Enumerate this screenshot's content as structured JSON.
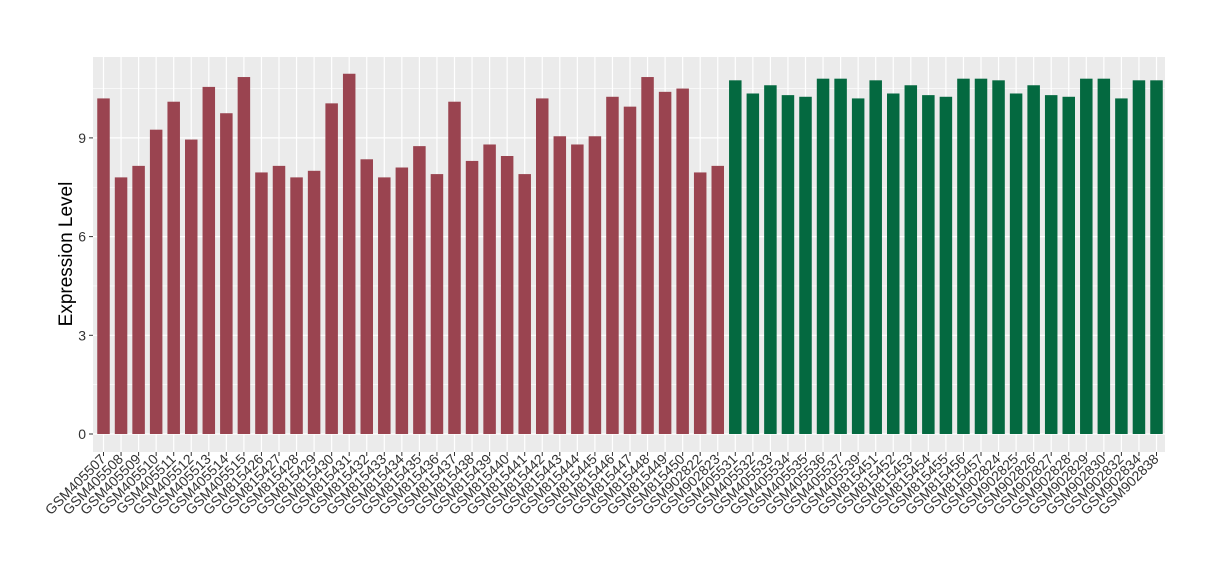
{
  "chart_data": {
    "type": "bar",
    "ylabel": "Expression Level",
    "ylim": [
      0,
      11.6
    ],
    "yticks": [
      0,
      3,
      6,
      9
    ],
    "grid": true,
    "colors": {
      "group_a": "#9a4450",
      "group_b": "#046940",
      "panel": "#ebebeb",
      "gridline": "#ffffff"
    },
    "categories": [
      "GSM405507",
      "GSM405508",
      "GSM405509",
      "GSM405510",
      "GSM405511",
      "GSM405512",
      "GSM405513",
      "GSM405514",
      "GSM405515",
      "GSM815426",
      "GSM815427",
      "GSM815428",
      "GSM815429",
      "GSM815430",
      "GSM815431",
      "GSM815432",
      "GSM815433",
      "GSM815434",
      "GSM815435",
      "GSM815436",
      "GSM815437",
      "GSM815438",
      "GSM815439",
      "GSM815440",
      "GSM815441",
      "GSM815442",
      "GSM815443",
      "GSM815444",
      "GSM815445",
      "GSM815446",
      "GSM815447",
      "GSM815448",
      "GSM815449",
      "GSM815450",
      "GSM902822",
      "GSM902823",
      "GSM405531",
      "GSM405532",
      "GSM405533",
      "GSM405534",
      "GSM405535",
      "GSM405536",
      "GSM405537",
      "GSM405539",
      "GSM815451",
      "GSM815452",
      "GSM815453",
      "GSM815454",
      "GSM815455",
      "GSM815456",
      "GSM815457",
      "GSM902824",
      "GSM902825",
      "GSM902826",
      "GSM902827",
      "GSM902828",
      "GSM902829",
      "GSM902830",
      "GSM902832",
      "GSM902834",
      "GSM902838"
    ],
    "values": [
      10.2,
      7.8,
      8.15,
      9.25,
      10.1,
      8.95,
      10.55,
      9.75,
      10.85,
      7.95,
      8.15,
      7.8,
      8.0,
      10.05,
      10.95,
      8.35,
      7.8,
      8.1,
      8.75,
      7.9,
      10.1,
      8.3,
      8.8,
      8.45,
      7.9,
      10.2,
      9.05,
      8.8,
      9.05,
      10.25,
      9.95,
      10.85,
      10.4,
      10.5,
      7.95,
      8.15,
      10.75,
      10.35,
      10.6,
      10.3,
      10.25,
      10.8,
      10.8,
      10.2,
      10.75,
      10.35,
      10.6,
      10.3,
      10.25,
      10.8,
      10.8,
      10.75,
      10.35,
      10.6,
      10.3,
      10.25,
      10.8,
      10.8,
      10.2,
      10.75,
      10.75
    ],
    "groups": [
      "a",
      "a",
      "a",
      "a",
      "a",
      "a",
      "a",
      "a",
      "a",
      "a",
      "a",
      "a",
      "a",
      "a",
      "a",
      "a",
      "a",
      "a",
      "a",
      "a",
      "a",
      "a",
      "a",
      "a",
      "a",
      "a",
      "a",
      "a",
      "a",
      "a",
      "a",
      "a",
      "a",
      "a",
      "a",
      "a",
      "b",
      "b",
      "b",
      "b",
      "b",
      "b",
      "b",
      "b",
      "b",
      "b",
      "b",
      "b",
      "b",
      "b",
      "b",
      "b",
      "b",
      "b",
      "b",
      "b",
      "b",
      "b",
      "b",
      "b",
      "b"
    ]
  }
}
